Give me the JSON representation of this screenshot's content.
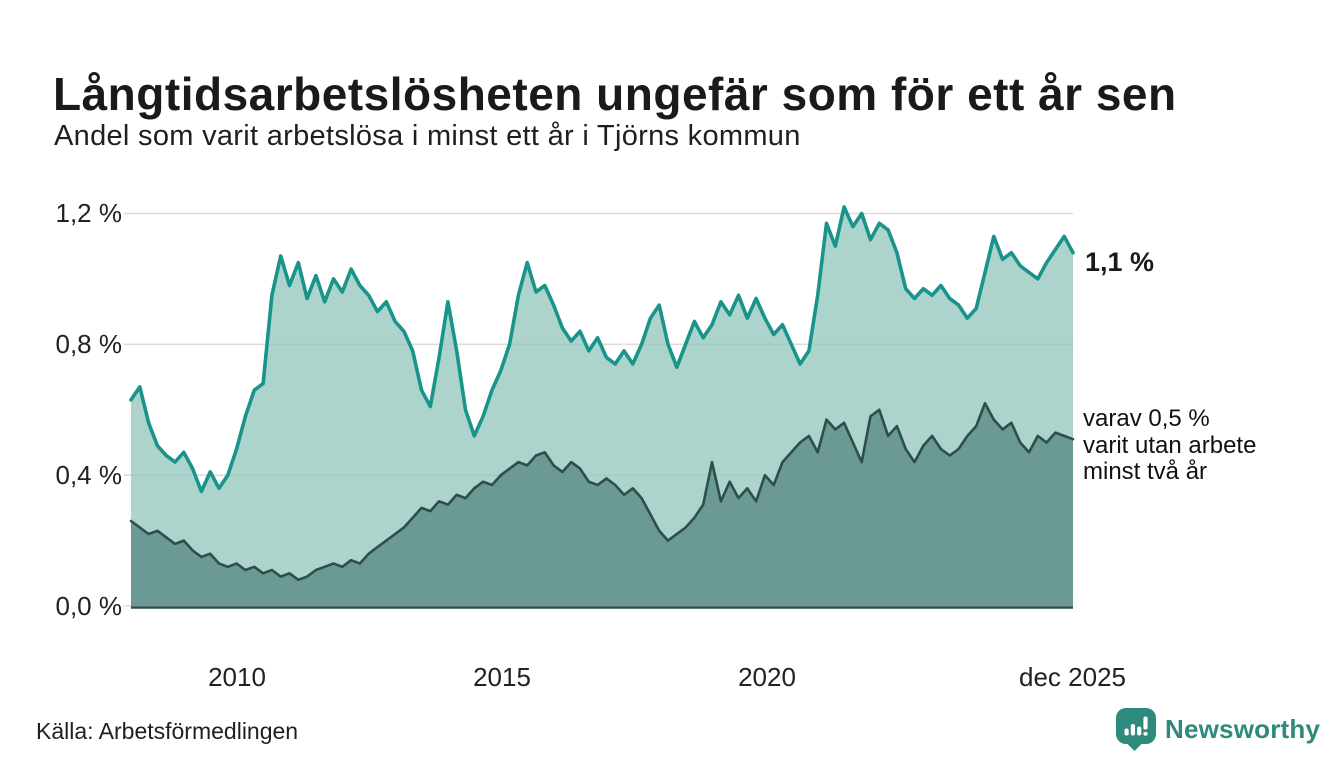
{
  "header": {
    "title": "Långtidsarbetslösheten ungefär som för ett år sen",
    "subtitle": "Andel som varit arbetslösa i minst ett år i Tjörns kommun"
  },
  "annotations": {
    "end_label": "1,1 %",
    "of_which": [
      "varav 0,5 %",
      "varit utan arbete",
      "minst två år"
    ]
  },
  "footer": {
    "source": "Källa: Arbetsförmedlingen",
    "brand": "Newsworthy"
  },
  "colors": {
    "accent_teal": "#18948a",
    "light_fill": "rgba(151,201,193,0.8)",
    "dark_line": "#2d4f4b",
    "dark_fill": "rgba(95,143,137,0.85)",
    "brand_teal": "#2e8a7d",
    "grid": "#dcdcdc",
    "text": "#1a1a1a"
  },
  "chart_data": {
    "type": "area",
    "title": "Långtidsarbetslösheten ungefär som för ett år sen",
    "subtitle": "Andel som varit arbetslösa i minst ett år i Tjörns kommun",
    "unit": "%",
    "grid": true,
    "x_axis": {
      "start_year": 2008,
      "step_months": 2,
      "end_label": "dec 2025"
    },
    "x_tick_labels": [
      "2010",
      "2015",
      "2020",
      "dec 2025"
    ],
    "x_tick_years": [
      2010,
      2015,
      2020,
      2025.92
    ],
    "y_tick_labels": [
      "0,0 %",
      "0,4 %",
      "0,8 %",
      "1,2 %"
    ],
    "y_ticks": [
      0,
      0.4,
      0.8,
      1.2
    ],
    "ylim": [
      0,
      1.26
    ],
    "series": [
      {
        "name": "Andel arbetslösa minst ett år",
        "end_value": 1.1,
        "values": [
          0.63,
          0.67,
          0.56,
          0.49,
          0.46,
          0.44,
          0.47,
          0.42,
          0.35,
          0.41,
          0.36,
          0.4,
          0.48,
          0.58,
          0.66,
          0.68,
          0.95,
          1.07,
          0.98,
          1.05,
          0.94,
          1.01,
          0.93,
          1.0,
          0.96,
          1.03,
          0.98,
          0.95,
          0.9,
          0.93,
          0.87,
          0.84,
          0.78,
          0.66,
          0.61,
          0.76,
          0.93,
          0.78,
          0.6,
          0.52,
          0.58,
          0.66,
          0.72,
          0.8,
          0.95,
          1.05,
          0.96,
          0.98,
          0.92,
          0.85,
          0.81,
          0.84,
          0.78,
          0.82,
          0.76,
          0.74,
          0.78,
          0.74,
          0.8,
          0.88,
          0.92,
          0.8,
          0.73,
          0.8,
          0.87,
          0.82,
          0.86,
          0.93,
          0.89,
          0.95,
          0.88,
          0.94,
          0.88,
          0.83,
          0.86,
          0.8,
          0.74,
          0.78,
          0.95,
          1.17,
          1.1,
          1.22,
          1.16,
          1.2,
          1.12,
          1.17,
          1.15,
          1.08,
          0.97,
          0.94,
          0.97,
          0.95,
          0.98,
          0.94,
          0.92,
          0.88,
          0.91,
          1.02,
          1.13,
          1.06,
          1.08,
          1.04,
          1.02,
          1.0,
          1.05,
          1.09,
          1.13,
          1.08
        ]
      },
      {
        "name": "varav utan arbete minst två år",
        "end_value": 0.5,
        "values": [
          0.26,
          0.24,
          0.22,
          0.23,
          0.21,
          0.19,
          0.2,
          0.17,
          0.15,
          0.16,
          0.13,
          0.12,
          0.13,
          0.11,
          0.12,
          0.1,
          0.11,
          0.09,
          0.1,
          0.08,
          0.09,
          0.11,
          0.12,
          0.13,
          0.12,
          0.14,
          0.13,
          0.16,
          0.18,
          0.2,
          0.22,
          0.24,
          0.27,
          0.3,
          0.29,
          0.32,
          0.31,
          0.34,
          0.33,
          0.36,
          0.38,
          0.37,
          0.4,
          0.42,
          0.44,
          0.43,
          0.46,
          0.47,
          0.43,
          0.41,
          0.44,
          0.42,
          0.38,
          0.37,
          0.39,
          0.37,
          0.34,
          0.36,
          0.33,
          0.28,
          0.23,
          0.2,
          0.22,
          0.24,
          0.27,
          0.31,
          0.44,
          0.32,
          0.38,
          0.33,
          0.36,
          0.32,
          0.4,
          0.37,
          0.44,
          0.47,
          0.5,
          0.52,
          0.47,
          0.57,
          0.54,
          0.56,
          0.5,
          0.44,
          0.58,
          0.6,
          0.52,
          0.55,
          0.48,
          0.44,
          0.49,
          0.52,
          0.48,
          0.46,
          0.48,
          0.52,
          0.55,
          0.62,
          0.57,
          0.54,
          0.56,
          0.5,
          0.47,
          0.52,
          0.5,
          0.53,
          0.52,
          0.51
        ]
      }
    ]
  }
}
